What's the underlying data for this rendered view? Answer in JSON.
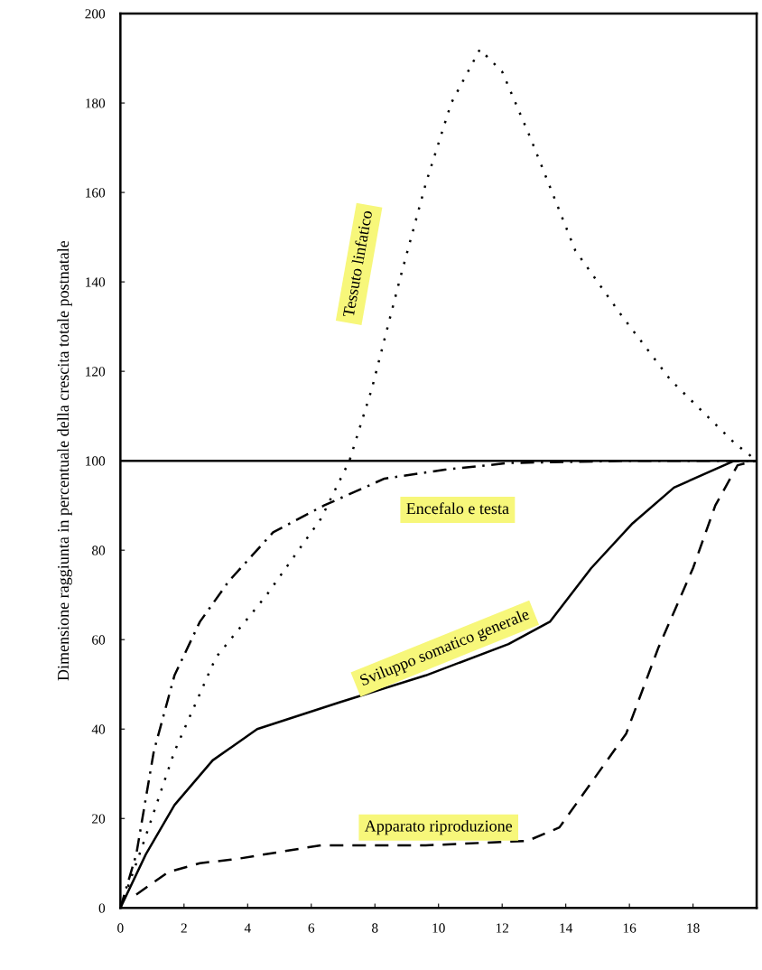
{
  "chart_data": {
    "type": "line",
    "ylabel": "Dimensione raggiunta in percentuale della crescita totale postnatale",
    "xlim": [
      0,
      20
    ],
    "xticks": [
      0,
      2,
      4,
      6,
      8,
      10,
      12,
      14,
      16,
      18
    ],
    "ylim": [
      0,
      200
    ],
    "yticks": [
      0,
      20,
      40,
      60,
      80,
      100,
      120,
      140,
      160,
      180,
      200
    ],
    "grid": false,
    "legend": false,
    "marker": "none",
    "ref_lines": [
      {
        "axis": "y",
        "value": 100,
        "color": "#000000",
        "line_style": "solid"
      }
    ],
    "series": [
      {
        "name": "Tessuto linfatico",
        "color": "#000000",
        "line_style": "dotted",
        "x": [
          0,
          0.65,
          1.7,
          3.0,
          4.6,
          6.3,
          7.2,
          7.9,
          8.8,
          9.6,
          10.4,
          11.3,
          12,
          12.9,
          14.3,
          15.7,
          17.3,
          19.3,
          20
        ],
        "values": [
          0,
          13,
          35,
          56,
          70,
          87,
          100,
          116,
          141,
          162,
          180,
          192,
          187,
          172,
          147,
          133,
          118,
          104,
          100
        ]
      },
      {
        "name": "Encefalo e testa",
        "color": "#000000",
        "line_style": "dashdot",
        "x": [
          0,
          0.5,
          1.05,
          1.7,
          2.5,
          3.4,
          4.8,
          6.4,
          8.3,
          10.2,
          12.2,
          16.1,
          20
        ],
        "values": [
          0,
          12,
          35,
          52,
          64,
          73,
          84,
          90,
          96,
          98,
          99.5,
          100,
          100
        ]
      },
      {
        "name": "Sviluppo somatico generale",
        "color": "#000000",
        "line_style": "solid",
        "x": [
          0,
          0.8,
          1.7,
          2.9,
          4.3,
          6.9,
          9.6,
          12.2,
          13.5,
          14.8,
          16.1,
          17.4,
          19.3,
          20
        ],
        "values": [
          0,
          12,
          23,
          33,
          40,
          46,
          52,
          59,
          64,
          76,
          86,
          94,
          100,
          100
        ]
      },
      {
        "name": "Apparato riproduzione",
        "color": "#000000",
        "line_style": "dashed",
        "x": [
          0.5,
          1.5,
          2.5,
          3.7,
          6.3,
          9.6,
          12.8,
          13.8,
          14.8,
          15.9,
          16.9,
          18,
          18.7,
          19.4,
          20
        ],
        "values": [
          3,
          8,
          10,
          11,
          14,
          14,
          15,
          18,
          28,
          39,
          58,
          76,
          90,
          99,
          100
        ]
      }
    ]
  }
}
